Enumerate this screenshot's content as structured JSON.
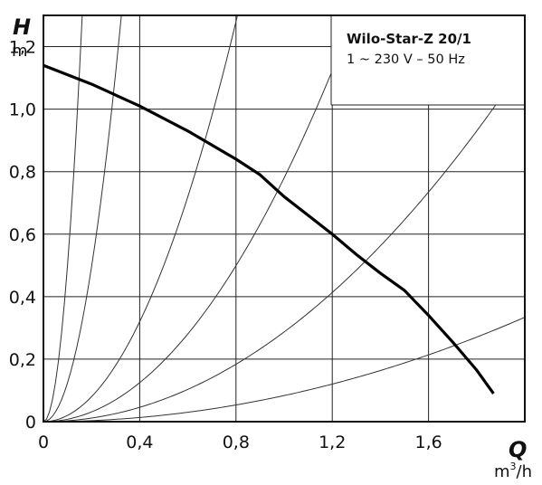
{
  "chart_data": {
    "type": "line",
    "title": "Wilo-Star-Z 20/1",
    "subtitle": "1 ~ 230 V – 50 Hz",
    "xlabel": "Q",
    "x_unit_base": "m",
    "x_unit_exp": "3",
    "x_unit_tail": "/h",
    "ylabel": "H",
    "y_unit": "m",
    "xlim": [
      0,
      2.0
    ],
    "ylim": [
      0,
      1.3
    ],
    "x_ticks": [
      0,
      0.4,
      0.8,
      1.2,
      1.6
    ],
    "x_tick_labels": [
      "0",
      "0,4",
      "0,8",
      "1,2",
      "1,6"
    ],
    "y_ticks": [
      0,
      0.2,
      0.4,
      0.6,
      0.8,
      1.0,
      1.2
    ],
    "y_tick_labels": [
      "0",
      "0,2",
      "0,4",
      "0,6",
      "0,8",
      "1,0",
      "1,2"
    ],
    "grid": true,
    "legend": "none",
    "series": [
      {
        "role": "pump-curve",
        "x": [
          0,
          0.2,
          0.4,
          0.6,
          0.8,
          0.9,
          1.0,
          1.1,
          1.2,
          1.3,
          1.4,
          1.5,
          1.6,
          1.7,
          1.8,
          1.87
        ],
        "y": [
          1.14,
          1.08,
          1.01,
          0.93,
          0.84,
          0.79,
          0.72,
          0.66,
          0.6,
          0.535,
          0.475,
          0.42,
          0.34,
          0.255,
          0.165,
          0.09
        ]
      }
    ],
    "system_curves": [
      {
        "k": 50.0
      },
      {
        "k": 12.4
      },
      {
        "k": 2.0
      },
      {
        "k": 0.78
      },
      {
        "k": 0.287
      },
      {
        "k": 0.0835
      }
    ]
  }
}
